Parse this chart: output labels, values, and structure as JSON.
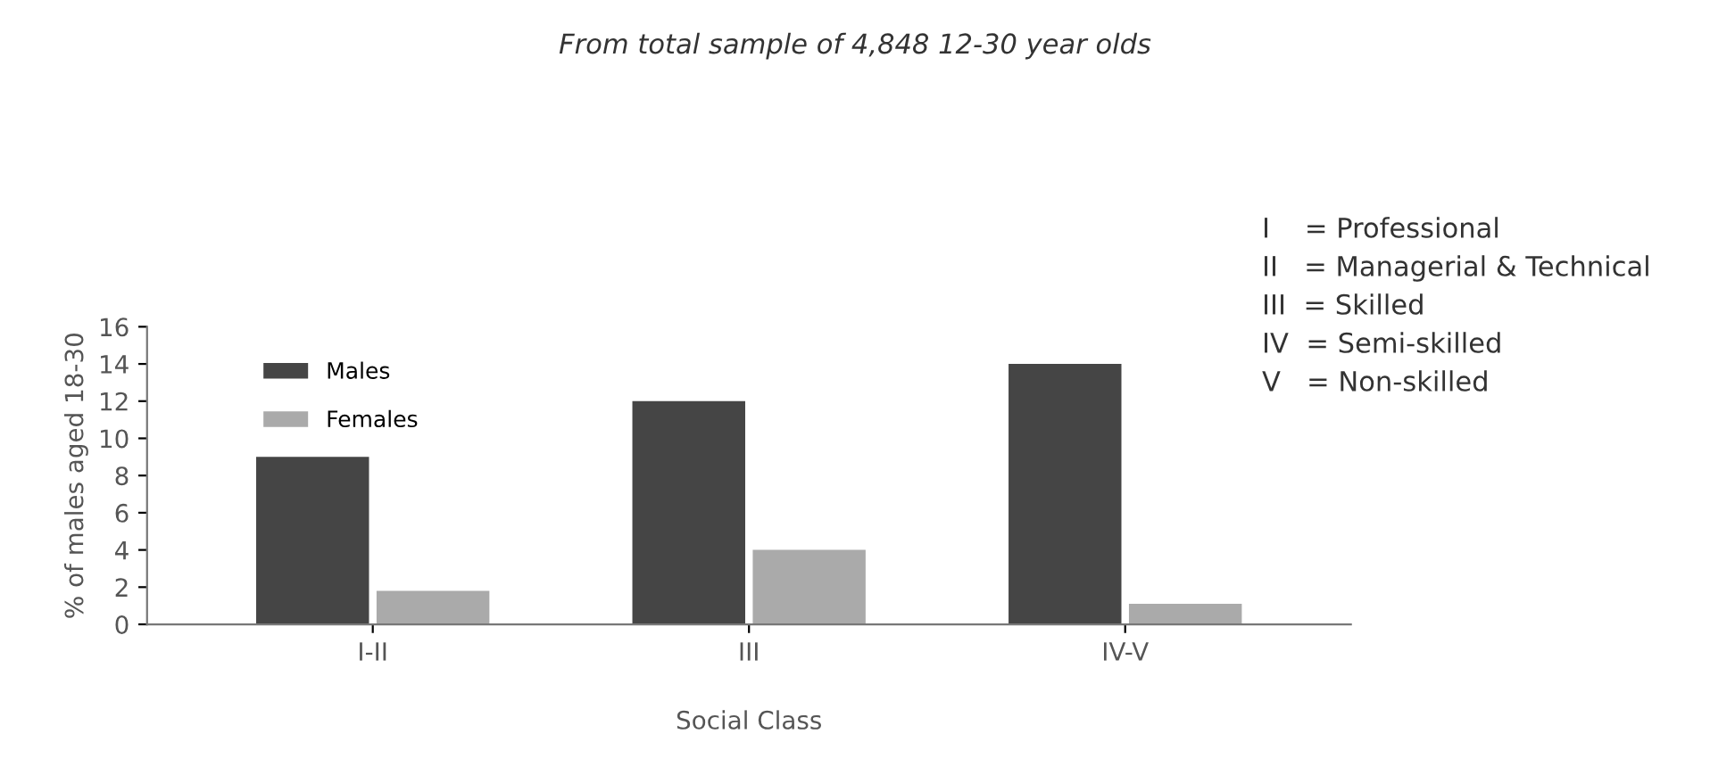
{
  "chart_data": {
    "type": "bar",
    "subtitle": "From total sample of 4,848 12-30 year olds",
    "xlabel": "Social Class",
    "ylabel": "% of males aged 18-30",
    "categories": [
      "I-II",
      "III",
      "IV-V"
    ],
    "series": [
      {
        "name": "Males",
        "color": "#454545",
        "values": [
          9,
          12,
          14
        ]
      },
      {
        "name": "Females",
        "color": "#aaaaaa",
        "values": [
          1.8,
          4,
          1.1
        ]
      }
    ],
    "ylim": [
      0,
      16
    ],
    "yticks": [
      0,
      2,
      4,
      6,
      8,
      10,
      12,
      14,
      16
    ],
    "grid": false,
    "legend": "top left",
    "annotations": [
      "I    = Professional",
      "II   = Managerial & Technical",
      "III  = Skilled",
      "IV  = Semi-skilled",
      "V   = Non-skilled"
    ]
  }
}
